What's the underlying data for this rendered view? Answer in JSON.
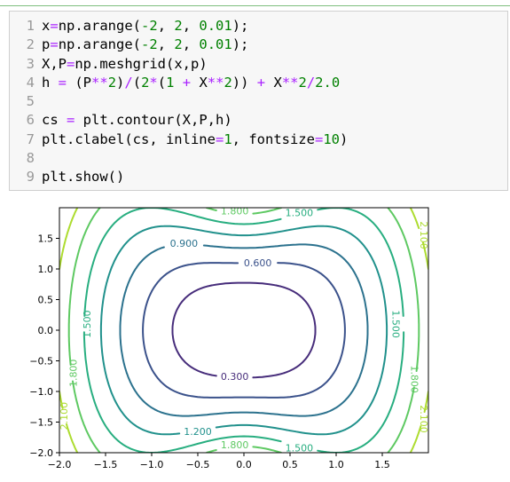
{
  "code_cell": {
    "lines": [
      {
        "n": "1",
        "tokens": [
          {
            "t": "x",
            "c": "code"
          },
          {
            "t": "=",
            "c": "op"
          },
          {
            "t": "np.arange(",
            "c": "code"
          },
          {
            "t": "-2",
            "c": "num"
          },
          {
            "t": ", ",
            "c": "code"
          },
          {
            "t": "2",
            "c": "num"
          },
          {
            "t": ", ",
            "c": "code"
          },
          {
            "t": "0.01",
            "c": "num"
          },
          {
            "t": ");",
            "c": "code"
          }
        ]
      },
      {
        "n": "2",
        "tokens": [
          {
            "t": "p",
            "c": "code"
          },
          {
            "t": "=",
            "c": "op"
          },
          {
            "t": "np.arange(",
            "c": "code"
          },
          {
            "t": "-2",
            "c": "num"
          },
          {
            "t": ", ",
            "c": "code"
          },
          {
            "t": "2",
            "c": "num"
          },
          {
            "t": ", ",
            "c": "code"
          },
          {
            "t": "0.01",
            "c": "num"
          },
          {
            "t": ");",
            "c": "code"
          }
        ]
      },
      {
        "n": "3",
        "tokens": [
          {
            "t": "X,P",
            "c": "code"
          },
          {
            "t": "=",
            "c": "op"
          },
          {
            "t": "np.meshgrid(x,p)",
            "c": "code"
          }
        ]
      },
      {
        "n": "4",
        "tokens": [
          {
            "t": "h ",
            "c": "code"
          },
          {
            "t": "=",
            "c": "op"
          },
          {
            "t": " (P",
            "c": "code"
          },
          {
            "t": "**",
            "c": "op"
          },
          {
            "t": "2",
            "c": "num"
          },
          {
            "t": ")",
            "c": "code"
          },
          {
            "t": "/",
            "c": "op"
          },
          {
            "t": "(",
            "c": "code"
          },
          {
            "t": "2",
            "c": "num"
          },
          {
            "t": "*",
            "c": "op"
          },
          {
            "t": "(",
            "c": "code"
          },
          {
            "t": "1",
            "c": "num"
          },
          {
            "t": " + ",
            "c": "op"
          },
          {
            "t": "X",
            "c": "code"
          },
          {
            "t": "**",
            "c": "op"
          },
          {
            "t": "2",
            "c": "num"
          },
          {
            "t": ")) ",
            "c": "code"
          },
          {
            "t": "+",
            "c": "op"
          },
          {
            "t": " X",
            "c": "code"
          },
          {
            "t": "**",
            "c": "op"
          },
          {
            "t": "2",
            "c": "num"
          },
          {
            "t": "/",
            "c": "op"
          },
          {
            "t": "2.0",
            "c": "num"
          }
        ]
      },
      {
        "n": "5",
        "tokens": []
      },
      {
        "n": "6",
        "tokens": [
          {
            "t": "cs ",
            "c": "code"
          },
          {
            "t": "=",
            "c": "op"
          },
          {
            "t": " plt.contour(X,P,h)",
            "c": "code"
          }
        ]
      },
      {
        "n": "7",
        "tokens": [
          {
            "t": "plt.clabel(cs, inline",
            "c": "code"
          },
          {
            "t": "=",
            "c": "op"
          },
          {
            "t": "1",
            "c": "num"
          },
          {
            "t": ", fontsize",
            "c": "code"
          },
          {
            "t": "=",
            "c": "op"
          },
          {
            "t": "10",
            "c": "num"
          },
          {
            "t": ")",
            "c": "code"
          }
        ]
      },
      {
        "n": "8",
        "tokens": []
      },
      {
        "n": "9",
        "tokens": [
          {
            "t": "plt.show()",
            "c": "code"
          }
        ]
      }
    ]
  },
  "chart_data": {
    "type": "contour",
    "function": "h = P**2/(2*(1+X**2)) + X**2/2.0",
    "xlim": [
      -2.0,
      2.0
    ],
    "ylim": [
      -2.0,
      2.0
    ],
    "xticks": [
      "−2.0",
      "−1.5",
      "−1.0",
      "−0.5",
      "0.0",
      "0.5",
      "1.0",
      "1.5"
    ],
    "xtick_values": [
      -2.0,
      -1.5,
      -1.0,
      -0.5,
      0.0,
      0.5,
      1.0,
      1.5
    ],
    "yticks": [
      "1.5",
      "1.0",
      "0.5",
      "0.0",
      "−0.5",
      "−1.0",
      "−1.5",
      "−2.0"
    ],
    "ytick_values": [
      1.5,
      1.0,
      0.5,
      0.0,
      -0.5,
      -1.0,
      -1.5,
      -2.0
    ],
    "levels": [
      0.3,
      0.6,
      0.9,
      1.2,
      1.5,
      1.8,
      2.1
    ],
    "level_labels": [
      "0.300",
      "0.600",
      "0.900",
      "1.200",
      "1.500",
      "1.800",
      "2.100"
    ],
    "level_colors": [
      "#472d7b",
      "#3b528b",
      "#2c728e",
      "#21918c",
      "#28ae80",
      "#5ec962",
      "#addc30"
    ],
    "inline_labels": [
      {
        "text": "0.300",
        "level": 0.3,
        "x": -0.1,
        "y": -0.75
      },
      {
        "text": "0.600",
        "level": 0.6,
        "x": 0.15,
        "y": 1.1
      },
      {
        "text": "0.900",
        "level": 0.9,
        "x": -0.65,
        "y": 1.42
      },
      {
        "text": "1.200",
        "level": 1.2,
        "x": -0.5,
        "y": -1.65
      },
      {
        "text": "1.500",
        "level": 1.5,
        "x": -1.7,
        "y": 0.1
      },
      {
        "text": "1.500",
        "level": 1.5,
        "x": 1.65,
        "y": 0.1
      },
      {
        "text": "1.500",
        "level": 1.5,
        "x": 0.6,
        "y": 1.92
      },
      {
        "text": "1.500",
        "level": 1.5,
        "x": 0.6,
        "y": -1.92
      },
      {
        "text": "1.800",
        "level": 1.8,
        "x": -0.1,
        "y": 1.95
      },
      {
        "text": "1.800",
        "level": 1.8,
        "x": -0.1,
        "y": -1.87
      },
      {
        "text": "1.800",
        "level": 1.8,
        "x": -1.85,
        "y": -0.7
      },
      {
        "text": "1.800",
        "level": 1.8,
        "x": 1.85,
        "y": -0.8
      },
      {
        "text": "2.100",
        "level": 2.1,
        "x": -1.95,
        "y": -1.4
      },
      {
        "text": "2.100",
        "level": 2.1,
        "x": 1.95,
        "y": -1.45
      },
      {
        "text": "2.100",
        "level": 2.1,
        "x": 1.95,
        "y": 1.55
      }
    ]
  }
}
